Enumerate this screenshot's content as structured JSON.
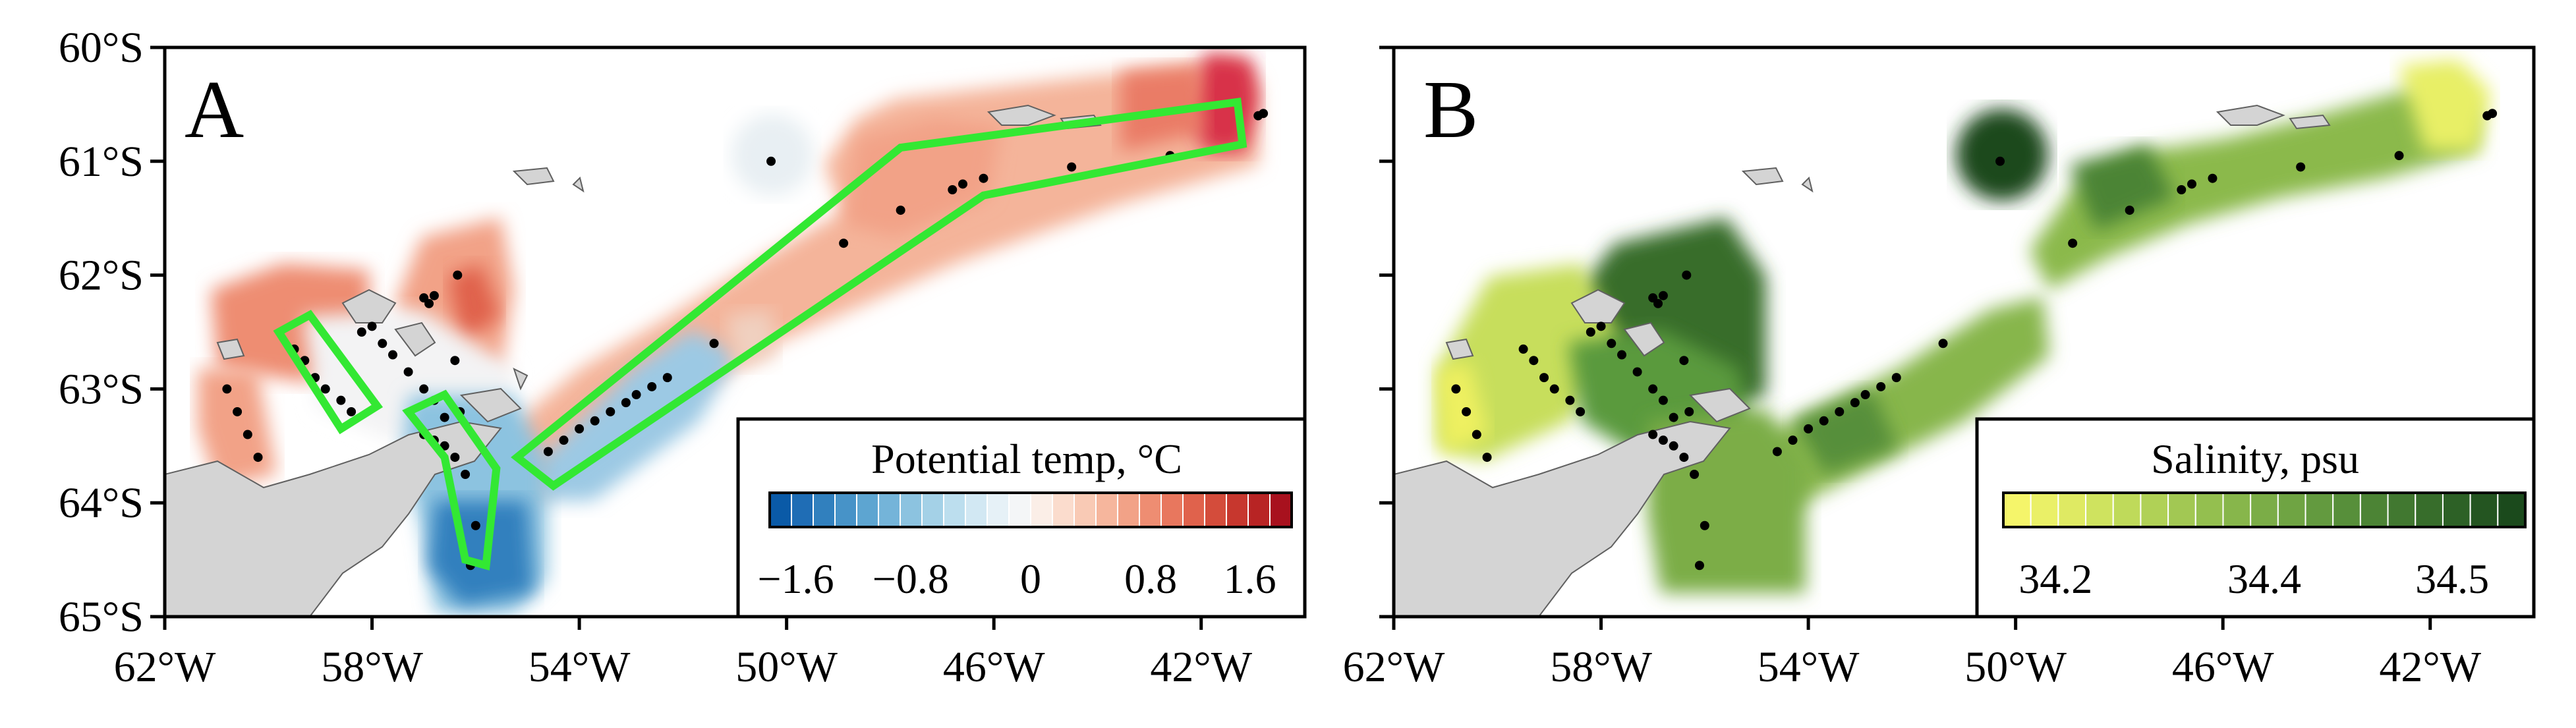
{
  "panels": [
    {
      "letter": "A",
      "legend": {
        "title": "Potential temp, °C",
        "ticks": [
          "−1.6",
          "−0.8",
          "0",
          "0.8",
          "1.6"
        ],
        "colors": [
          "#0a5aa7",
          "#1f6db5",
          "#3180be",
          "#4793c8",
          "#5da5d1",
          "#74b4d9",
          "#8cc3e0",
          "#a4d1e7",
          "#bcdeee",
          "#d2e8f3",
          "#e6f1f7",
          "#f4f6f7",
          "#fbeee7",
          "#fbdccd",
          "#f9cab5",
          "#f6b69d",
          "#f2a287",
          "#ee8d72",
          "#e8775e",
          "#e0624c",
          "#d44c3b",
          "#c7372e",
          "#b82424",
          "#a8111e"
        ]
      },
      "x_ticks": [
        "62°W",
        "58°W",
        "54°W",
        "50°W",
        "46°W",
        "42°W"
      ],
      "y_ticks": [
        "60°S",
        "61°S",
        "62°S",
        "63°S",
        "64°S",
        "65°S"
      ]
    },
    {
      "letter": "B",
      "legend": {
        "title": "Salinity, psu",
        "ticks": [
          "34.2",
          "34.4",
          "34.5"
        ],
        "colors": [
          "#f5f56a",
          "#eaf067",
          "#dfea63",
          "#cfe35f",
          "#bfda5a",
          "#b0d156",
          "#a2c853",
          "#94bf4f",
          "#87b64b",
          "#7bad47",
          "#6fa443",
          "#639a3f",
          "#578f3a",
          "#4c8435",
          "#417830",
          "#376d2b",
          "#2d6126",
          "#245521",
          "#1b4a1c"
        ]
      },
      "x_ticks": [
        "62°W",
        "58°W",
        "54°W",
        "50°W",
        "46°W",
        "42°W"
      ],
      "y_ticks": [
        "60°S",
        "61°S",
        "62°S",
        "63°S",
        "64°S",
        "65°S"
      ]
    }
  ],
  "map_extent": {
    "lon_range": [
      -62,
      -40
    ],
    "lat_range": [
      -65,
      -60
    ]
  },
  "stations": [
    [
      -40.8,
      -60.58
    ],
    [
      -40.9,
      -60.6
    ],
    [
      -42.6,
      -60.95
    ],
    [
      -44.5,
      -61.05
    ],
    [
      -46.2,
      -61.15
    ],
    [
      -46.6,
      -61.2
    ],
    [
      -46.8,
      -61.25
    ],
    [
      -47.8,
      -61.43
    ],
    [
      -48.9,
      -61.72
    ],
    [
      -51.4,
      -62.6
    ],
    [
      -52.3,
      -62.9
    ],
    [
      -52.6,
      -62.98
    ],
    [
      -52.9,
      -63.05
    ],
    [
      -53.1,
      -63.12
    ],
    [
      -53.4,
      -63.2
    ],
    [
      -53.7,
      -63.28
    ],
    [
      -54.0,
      -63.35
    ],
    [
      -54.3,
      -63.45
    ],
    [
      -54.6,
      -63.55
    ],
    [
      -50.3,
      -61.0
    ],
    [
      -56.35,
      -62.0
    ],
    [
      -56.8,
      -62.18
    ],
    [
      -57.0,
      -62.2
    ],
    [
      -56.9,
      -62.25
    ],
    [
      -56.4,
      -62.75
    ],
    [
      -56.3,
      -63.2
    ],
    [
      -58.0,
      -62.45
    ],
    [
      -58.2,
      -62.5
    ],
    [
      -57.8,
      -62.6
    ],
    [
      -57.6,
      -62.7
    ],
    [
      -57.3,
      -62.85
    ],
    [
      -57.0,
      -63.0
    ],
    [
      -56.8,
      -63.1
    ],
    [
      -56.6,
      -63.25
    ],
    [
      -59.5,
      -62.65
    ],
    [
      -59.3,
      -62.75
    ],
    [
      -59.1,
      -62.9
    ],
    [
      -58.9,
      -63.0
    ],
    [
      -58.6,
      -63.1
    ],
    [
      -58.4,
      -63.2
    ],
    [
      -57.0,
      -63.4
    ],
    [
      -56.8,
      -63.45
    ],
    [
      -56.6,
      -63.5
    ],
    [
      -56.4,
      -63.6
    ],
    [
      -56.2,
      -63.75
    ],
    [
      -56.0,
      -64.2
    ],
    [
      -56.1,
      -64.55
    ],
    [
      -60.8,
      -63.0
    ],
    [
      -60.6,
      -63.2
    ],
    [
      -60.4,
      -63.4
    ],
    [
      -60.2,
      -63.6
    ]
  ],
  "boxes": [
    [
      [
        -41.3,
        -60.48
      ],
      [
        -41.2,
        -60.85
      ],
      [
        -46.2,
        -61.3
      ],
      [
        -54.5,
        -63.85
      ],
      [
        -55.2,
        -63.6
      ],
      [
        -47.8,
        -60.88
      ]
    ],
    [
      [
        -59.8,
        -62.5
      ],
      [
        -59.2,
        -62.35
      ],
      [
        -57.9,
        -63.15
      ],
      [
        -58.6,
        -63.35
      ]
    ],
    [
      [
        -57.3,
        -63.2
      ],
      [
        -56.6,
        -63.05
      ],
      [
        -55.6,
        -63.7
      ],
      [
        -55.8,
        -64.55
      ],
      [
        -56.2,
        -64.5
      ],
      [
        -56.6,
        -63.6
      ]
    ]
  ],
  "accent_color": "#33e833",
  "land_color": "#d4d4d4"
}
